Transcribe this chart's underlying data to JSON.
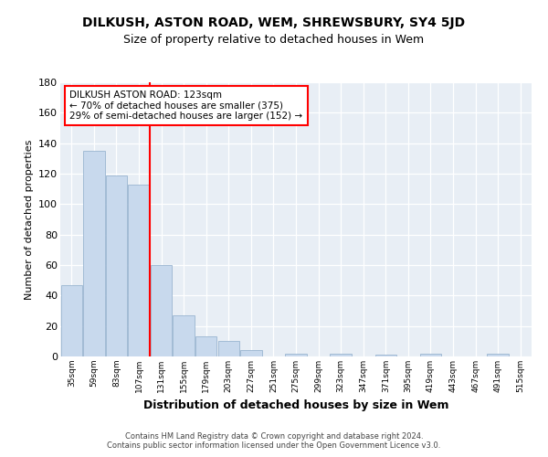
{
  "title1": "DILKUSH, ASTON ROAD, WEM, SHREWSBURY, SY4 5JD",
  "title2": "Size of property relative to detached houses in Wem",
  "xlabel": "Distribution of detached houses by size in Wem",
  "ylabel": "Number of detached properties",
  "bar_labels": [
    "35sqm",
    "59sqm",
    "83sqm",
    "107sqm",
    "131sqm",
    "155sqm",
    "179sqm",
    "203sqm",
    "227sqm",
    "251sqm",
    "275sqm",
    "299sqm",
    "323sqm",
    "347sqm",
    "371sqm",
    "395sqm",
    "419sqm",
    "443sqm",
    "467sqm",
    "491sqm",
    "515sqm"
  ],
  "bar_values": [
    47,
    135,
    119,
    113,
    60,
    27,
    13,
    10,
    4,
    0,
    2,
    0,
    2,
    0,
    1,
    0,
    2,
    0,
    0,
    2,
    0
  ],
  "bar_color": "#c8d9ed",
  "bar_edge_color": "#9ab5d0",
  "property_line_color": "red",
  "annotation_title": "DILKUSH ASTON ROAD: 123sqm",
  "annotation_line1": "← 70% of detached houses are smaller (375)",
  "annotation_line2": "29% of semi-detached houses are larger (152) →",
  "annotation_box_color": "white",
  "annotation_box_edge": "red",
  "ylim": [
    0,
    180
  ],
  "yticks": [
    0,
    20,
    40,
    60,
    80,
    100,
    120,
    140,
    160,
    180
  ],
  "footer_line1": "Contains HM Land Registry data © Crown copyright and database right 2024.",
  "footer_line2": "Contains public sector information licensed under the Open Government Licence v3.0.",
  "bg_color": "#ffffff",
  "plot_bg_color": "#e8eef5"
}
